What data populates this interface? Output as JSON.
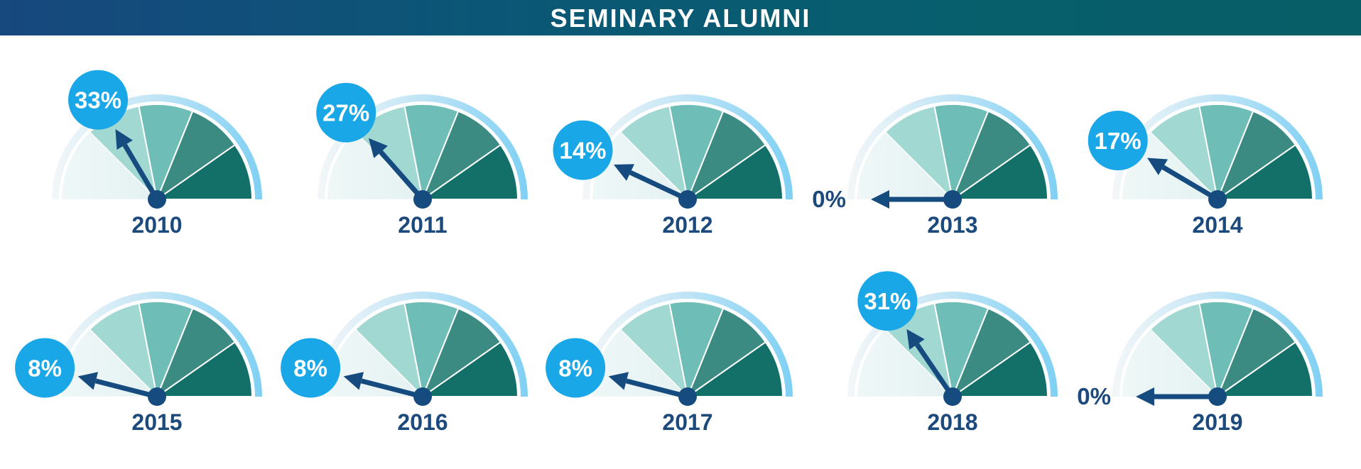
{
  "header": {
    "title": "SEMINARY ALUMNI"
  },
  "colors": {
    "header_start": "#17487e",
    "header_end": "#075e66",
    "outer_ring": "#7fd0f4",
    "bubble": "#1aa7e8",
    "needle": "#164b80",
    "year_text": "#1d4a7c",
    "pct_text_plain": "#1d4a7c",
    "segments": [
      "#e4f1f1",
      "#a2d8d2",
      "#6fbdb7",
      "#3c8b83",
      "#137068"
    ]
  },
  "chart_data": {
    "type": "gauge",
    "title": "SEMINARY ALUMNI",
    "range": [
      0,
      100
    ],
    "unit": "%",
    "gauges": [
      {
        "year": "2010",
        "value": 33,
        "label": "33%"
      },
      {
        "year": "2011",
        "value": 27,
        "label": "27%"
      },
      {
        "year": "2012",
        "value": 14,
        "label": "14%"
      },
      {
        "year": "2013",
        "value": 0,
        "label": "0%"
      },
      {
        "year": "2014",
        "value": 17,
        "label": "17%"
      },
      {
        "year": "2015",
        "value": 8,
        "label": "8%"
      },
      {
        "year": "2016",
        "value": 8,
        "label": "8%"
      },
      {
        "year": "2017",
        "value": 8,
        "label": "8%"
      },
      {
        "year": "2018",
        "value": 31,
        "label": "31%"
      },
      {
        "year": "2019",
        "value": 0,
        "label": "0%"
      }
    ]
  }
}
